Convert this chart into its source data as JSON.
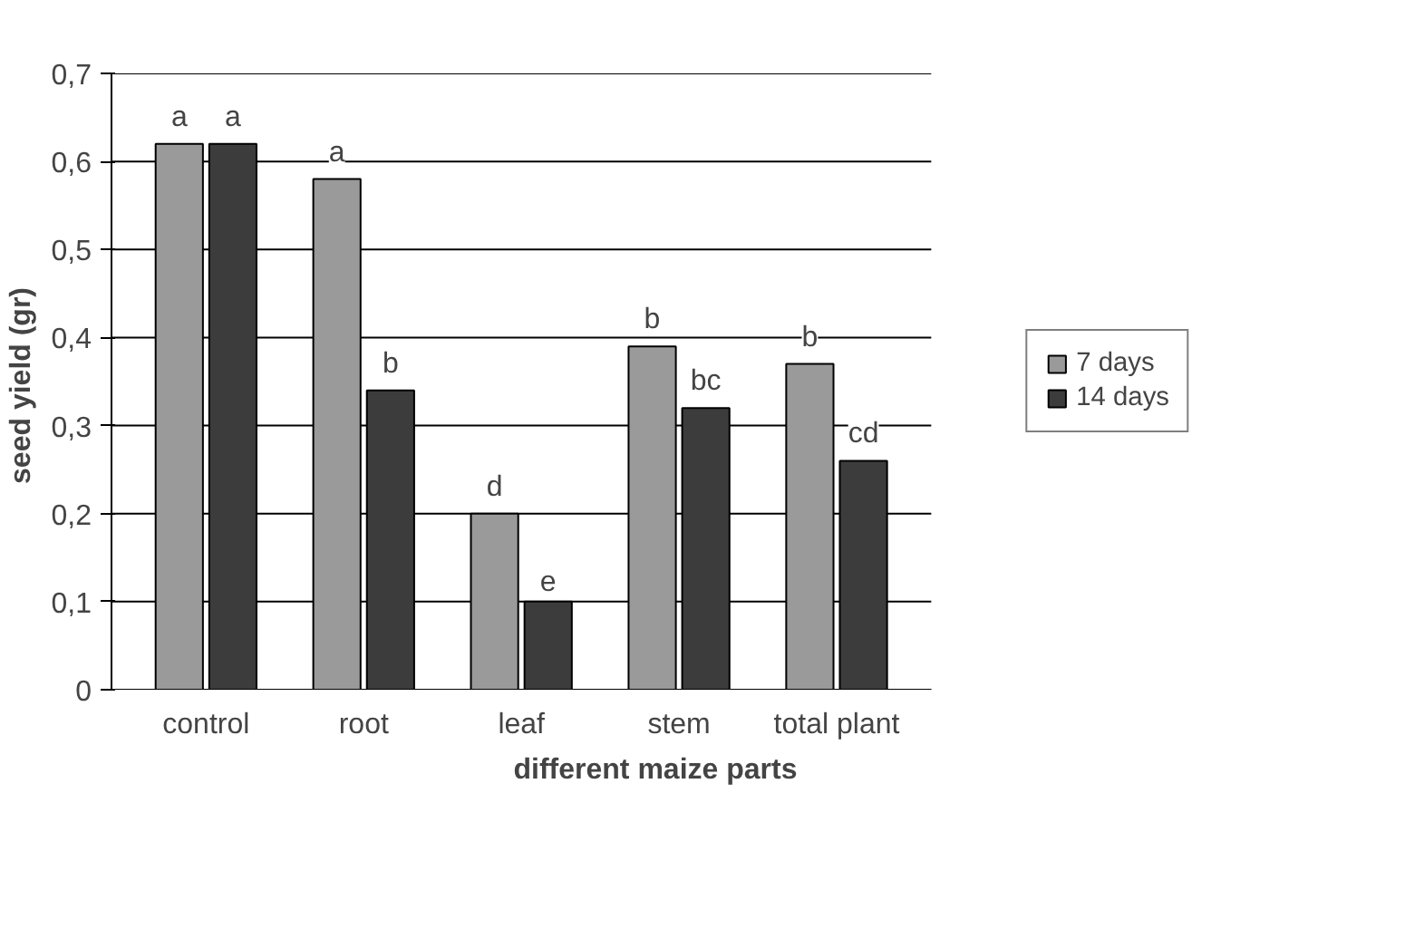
{
  "chart_data": {
    "type": "bar",
    "xlabel": "different maize parts",
    "ylabel": "seed yield  (gr)",
    "categories": [
      "control",
      "root",
      "leaf",
      "stem",
      "total plant"
    ],
    "series": [
      {
        "name": "7 days",
        "color": "#9a9a9a",
        "values": [
          0.62,
          0.58,
          0.2,
          0.39,
          0.37
        ],
        "value_labels": [
          "a",
          "a",
          "d",
          "b",
          "b"
        ]
      },
      {
        "name": "14 days",
        "color": "#3c3c3c",
        "values": [
          0.62,
          0.34,
          0.1,
          0.32,
          0.26
        ],
        "value_labels": [
          "a",
          "b",
          "e",
          "bc",
          "cd"
        ]
      }
    ],
    "ylim": [
      0,
      0.7
    ],
    "yticks": [
      0,
      {
        "value": 0.1,
        "label": "0,1"
      },
      {
        "value": 0.2,
        "label": "0,2"
      },
      {
        "value": 0.3,
        "label": "0,3"
      },
      {
        "value": 0.4,
        "label": "0,4"
      },
      {
        "value": 0.5,
        "label": "0,5"
      },
      {
        "value": 0.6,
        "label": "0,6"
      },
      {
        "value": 0.7,
        "label": "0,7"
      }
    ],
    "grid": "y",
    "legend": "right"
  }
}
